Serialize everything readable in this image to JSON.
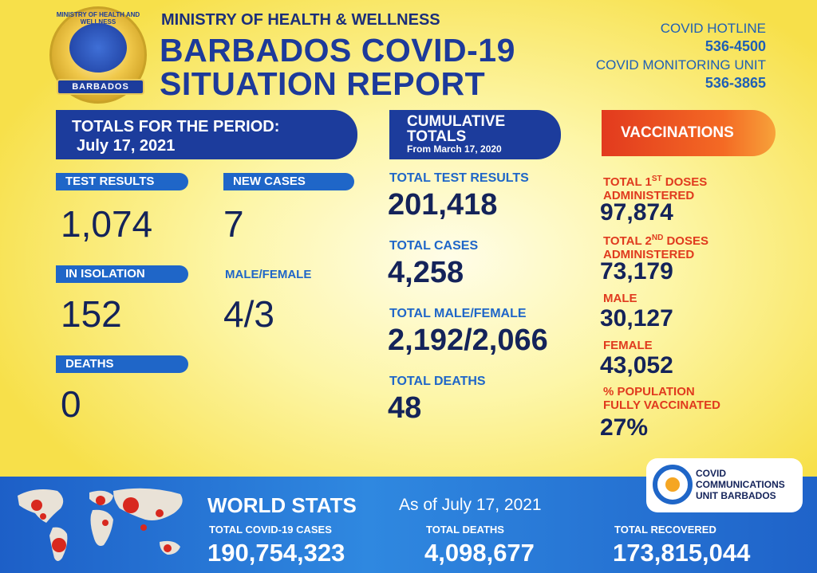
{
  "header": {
    "seal_ring_text": "MINISTRY OF HEALTH AND WELLNESS",
    "seal_banner": "BARBADOS",
    "ministry": "MINISTRY OF HEALTH & WELLNESS",
    "title_line1": "BARBADOS COVID-19",
    "title_line2": "SITUATION REPORT",
    "hotline_label": "COVID HOTLINE",
    "hotline_number": "536-4500",
    "monitoring_label": "COVID MONITORING UNIT",
    "monitoring_number": "536-3865"
  },
  "period": {
    "banner_line1": "TOTALS FOR THE PERIOD:",
    "banner_line2": "July 17, 2021",
    "test_results_label": "TEST RESULTS",
    "test_results_value": "1,074",
    "new_cases_label": "NEW CASES",
    "new_cases_value": "7",
    "isolation_label": "IN ISOLATION",
    "isolation_value": "152",
    "male_female_label": "MALE/FEMALE",
    "male_female_value": "4/3",
    "deaths_label": "DEATHS",
    "deaths_value": "0"
  },
  "cumulative": {
    "banner_line1": "CUMULATIVE",
    "banner_line2": "TOTALS",
    "banner_line3": "From March 17, 2020",
    "tests_label": "TOTAL TEST RESULTS",
    "tests_value": "201,418",
    "cases_label": "TOTAL CASES",
    "cases_value": "4,258",
    "mf_label": "TOTAL MALE/FEMALE",
    "mf_value": "2,192/2,066",
    "deaths_label": "TOTAL DEATHS",
    "deaths_value": "48"
  },
  "vaccinations": {
    "banner": "VACCINATIONS",
    "first_label_a": "TOTAL 1",
    "first_label_sup": "ST",
    "first_label_b": " DOSES",
    "first_label_c": "ADMINISTERED",
    "first_value": "97,874",
    "second_label_a": "TOTAL 2",
    "second_label_sup": "ND",
    "second_label_b": " DOSES",
    "second_label_c": "ADMINISTERED",
    "second_value": "73,179",
    "male_label": "MALE",
    "male_value": "30,127",
    "female_label": "FEMALE",
    "female_value": "43,052",
    "pct_label_a": "% POPULATION",
    "pct_label_b": "FULLY VACCINATED",
    "pct_value": "27%"
  },
  "world": {
    "title": "WORLD STATS",
    "as_of": "As of July 17, 2021",
    "cases_label": "TOTAL COVID-19 CASES",
    "cases_value": "190,754,323",
    "deaths_label": "TOTAL DEATHS",
    "deaths_value": "4,098,677",
    "recovered_label": "TOTAL RECOVERED",
    "recovered_value": "173,815,044"
  },
  "ccu": {
    "line1": "COVID",
    "line2": "COMMUNICATIONS",
    "line3": "UNIT BARBADOS"
  },
  "colors": {
    "navy": "#1c3c9c",
    "blue": "#1f66c8",
    "red": "#e03a1e",
    "yellow": "#f7e04a"
  }
}
